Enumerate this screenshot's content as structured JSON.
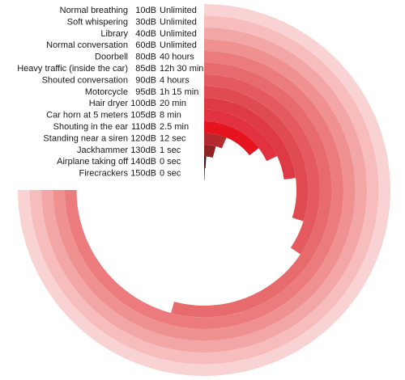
{
  "chart_data": {
    "type": "radial-bar",
    "title": "",
    "rows": [
      {
        "label": "Normal breathing",
        "db": "10dB",
        "time": "Unlimited",
        "fraction": 0.75,
        "color": "#f9d3d3"
      },
      {
        "label": "Soft whispering",
        "db": "30dB",
        "time": "Unlimited",
        "fraction": 0.75,
        "color": "#f6bdbc"
      },
      {
        "label": "Library",
        "db": "40dB",
        "time": "Unlimited",
        "fraction": 0.75,
        "color": "#f2a6a5"
      },
      {
        "label": "Normal conversation",
        "db": "60dB",
        "time": "Unlimited",
        "fraction": 0.75,
        "color": "#ef9190"
      },
      {
        "label": "Doorbell",
        "db": "80dB",
        "time": "40 hours",
        "fraction": 0.75,
        "color": "#eb7b7c"
      },
      {
        "label": "Heavy traffic (inside the car)",
        "db": "85dB",
        "time": "12h 30 min",
        "fraction": 0.5417,
        "color": "#e76a6d"
      },
      {
        "label": "Shouted conversation",
        "db": "90dB",
        "time": "4 hours",
        "fraction": 0.3438,
        "color": "#e45a5f"
      },
      {
        "label": "Motorcycle",
        "db": "95dB",
        "time": "1h 15 min",
        "fraction": 0.2986,
        "color": "#e04b52"
      },
      {
        "label": "Hair dryer",
        "db": "100dB",
        "time": "20 min",
        "fraction": 0.2292,
        "color": "#dd3a45"
      },
      {
        "label": "Car horn at 5 meters",
        "db": "105dB",
        "time": "8 min",
        "fraction": 0.1806,
        "color": "#e2323f"
      },
      {
        "label": "Shouting in the ear",
        "db": "110dB",
        "time": "2.5 min",
        "fraction": 0.1458,
        "color": "#e6141f"
      },
      {
        "label": "Standing near a siren",
        "db": "120dB",
        "time": "12 sec",
        "fraction": 0.0639,
        "color": "#b52a2e"
      },
      {
        "label": "Jackhammer",
        "db": "130dB",
        "time": "1 sec",
        "fraction": 0.0417,
        "color": "#8e2224"
      },
      {
        "label": "Airplane taking off",
        "db": "140dB",
        "time": "0 sec",
        "fraction": 0.01,
        "color": "#3a1a1a"
      },
      {
        "label": "Firecrackers",
        "db": "150dB",
        "time": "0 sec",
        "fraction": 0.005,
        "color": "#111111"
      }
    ]
  }
}
